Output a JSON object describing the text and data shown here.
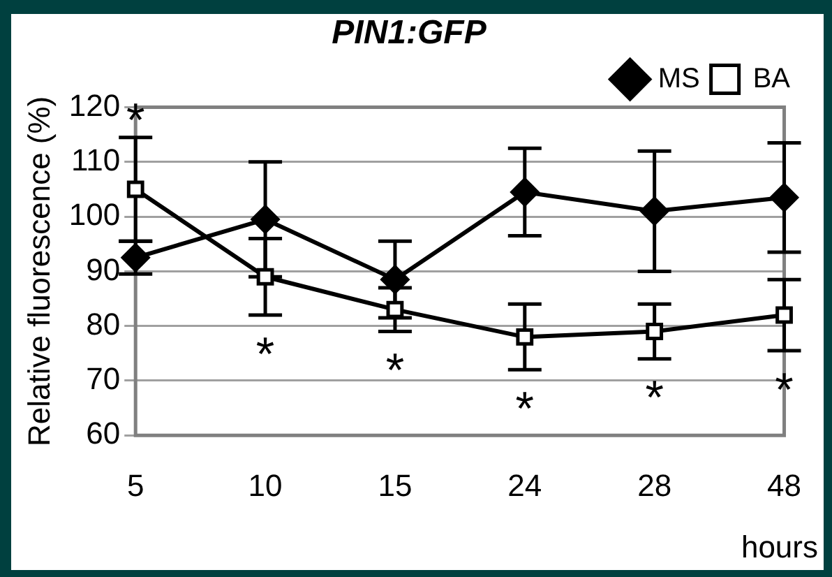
{
  "chart_data": {
    "type": "line",
    "title": "PIN1:GFP",
    "xlabel": "hours",
    "ylabel": "Relative fluorescence (%)",
    "categories": [
      "5",
      "10",
      "15",
      "24",
      "28",
      "48"
    ],
    "series": [
      {
        "name": "MS",
        "color": "#000000",
        "marker": "diamond",
        "values": [
          92.5,
          99.5,
          88.5,
          104.5,
          101,
          103.5
        ],
        "errors": [
          3,
          10.5,
          7,
          8,
          11,
          10
        ]
      },
      {
        "name": "BA",
        "color": "#000000",
        "marker": "square",
        "values": [
          105,
          89,
          83,
          78,
          79,
          82
        ],
        "errors": [
          9.5,
          7,
          4,
          6,
          5,
          6.5
        ]
      }
    ],
    "ylim": [
      60,
      120
    ],
    "yticks": [
      60,
      70,
      80,
      90,
      100,
      110,
      120
    ],
    "grid": "y",
    "legend": "top right",
    "annotations": [
      "*",
      "*",
      "*",
      "*",
      "*",
      "*"
    ]
  }
}
